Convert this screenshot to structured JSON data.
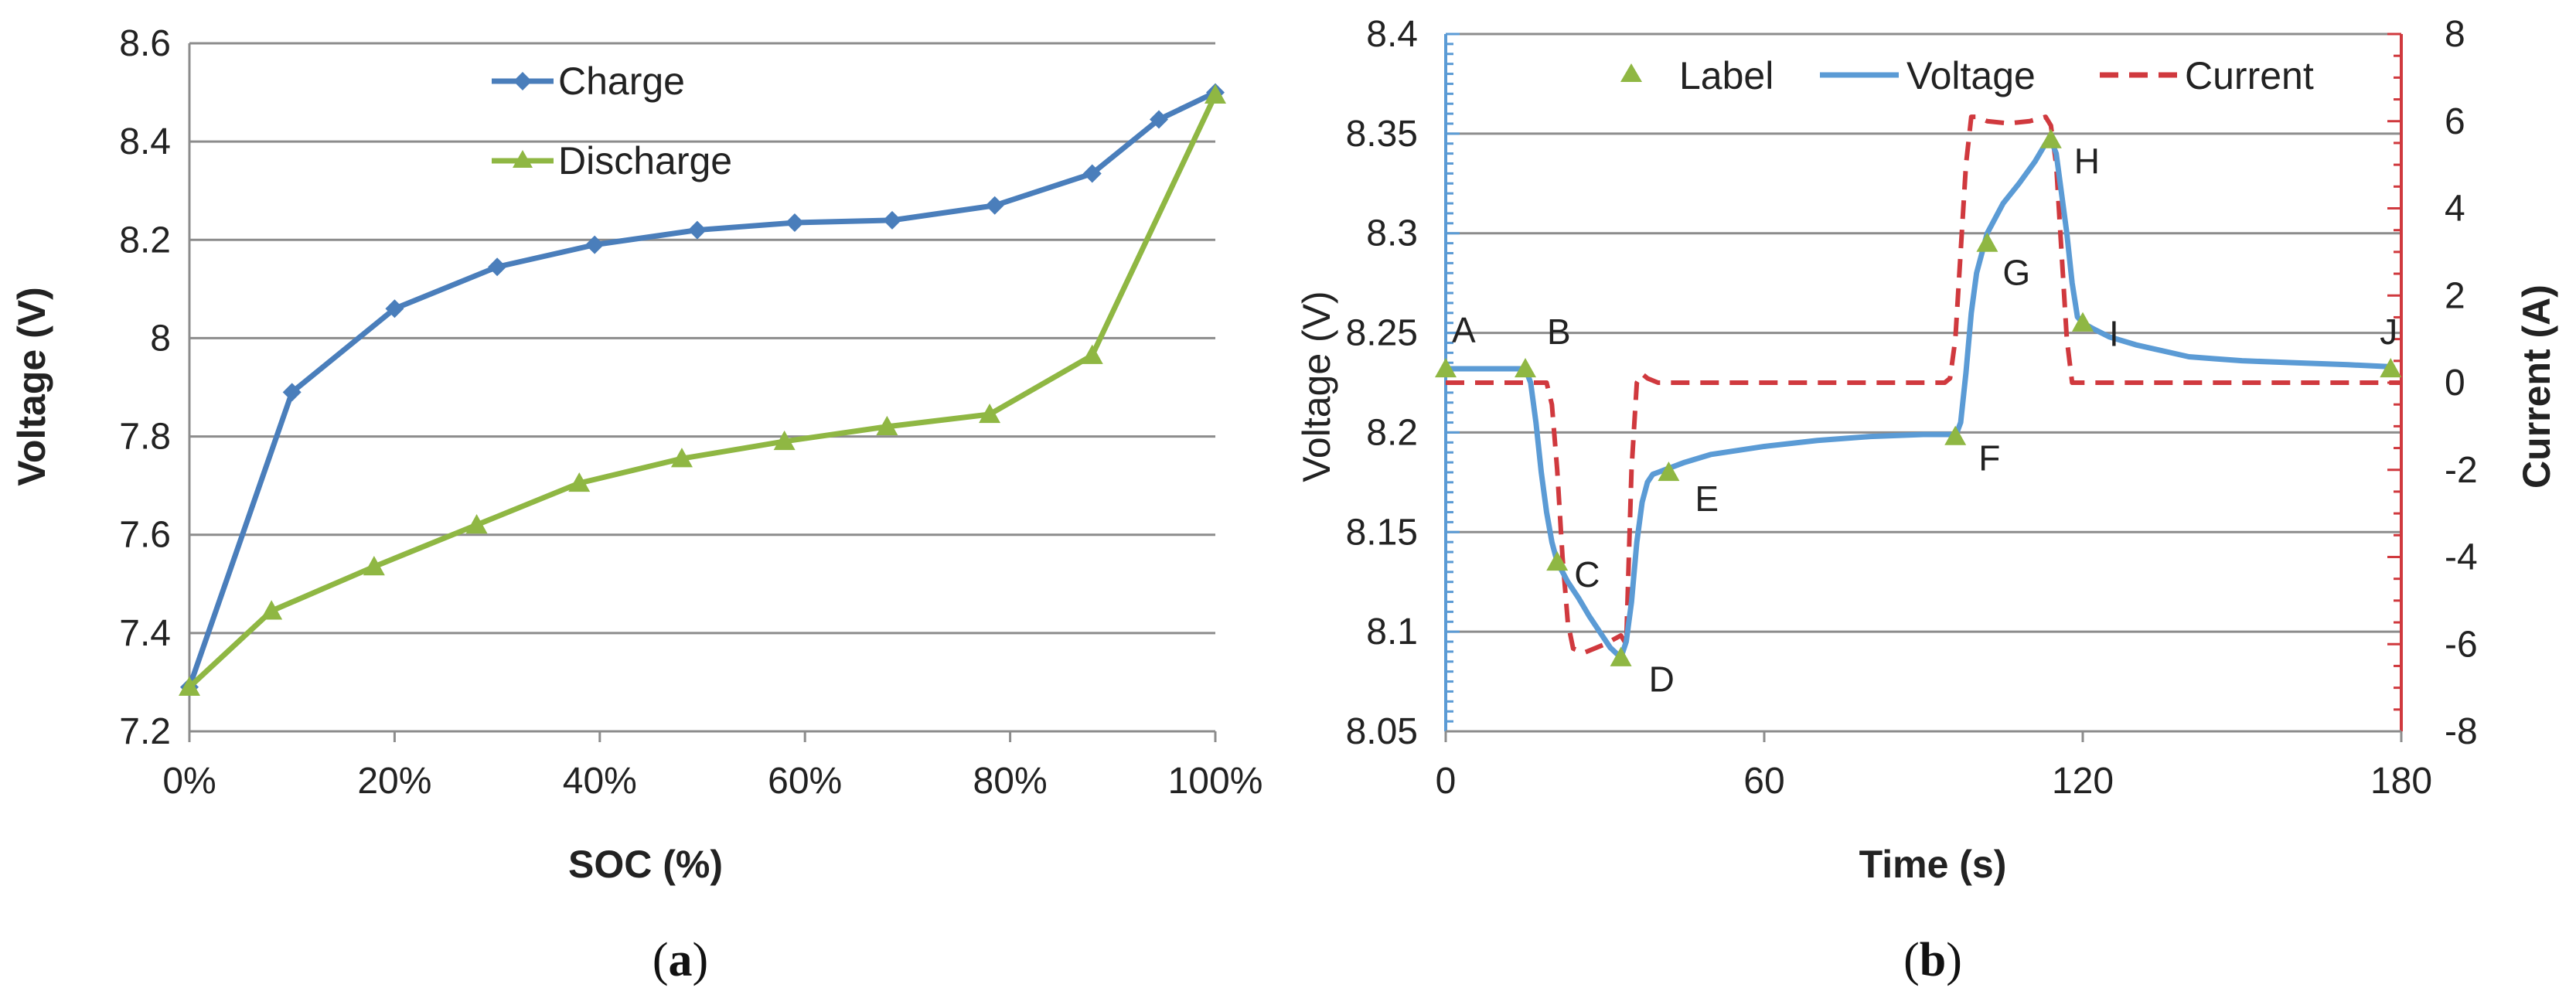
{
  "colors": {
    "charge": "#4a7ebb",
    "discharge": "#8fb743",
    "voltage": "#5b9bd5",
    "current": "#d0393e",
    "grid": "#8c8c8c",
    "label_marker": "#8fb743"
  },
  "chart_data": [
    {
      "id": "a",
      "caption_letter": "a",
      "type": "line",
      "title": "",
      "xlabel": "SOC (%)",
      "ylabel": "Voltage (V)",
      "xlim": [
        0,
        100
      ],
      "ylim": [
        7.2,
        8.6
      ],
      "grid": true,
      "legend_position": "top-center",
      "x_tick_labels": [
        "0%",
        "20%",
        "40%",
        "60%",
        "80%",
        "100%"
      ],
      "x_tick_values": [
        0,
        20,
        40,
        60,
        80,
        100
      ],
      "y_tick_labels": [
        "7.2",
        "7.4",
        "7.6",
        "7.8",
        "8",
        "8.2",
        "8.4",
        "8.6"
      ],
      "y_tick_values": [
        7.2,
        7.4,
        7.6,
        7.8,
        8.0,
        8.2,
        8.4,
        8.6
      ],
      "series": [
        {
          "name": "Charge",
          "marker": "diamond",
          "color": "#4a7ebb",
          "x": [
            0,
            10,
            20,
            30,
            39.5,
            49.5,
            59,
            68.5,
            78.5,
            88,
            94.5,
            100
          ],
          "y": [
            7.29,
            7.89,
            8.06,
            8.145,
            8.19,
            8.22,
            8.235,
            8.24,
            8.27,
            8.335,
            8.445,
            8.5
          ]
        },
        {
          "name": "Discharge",
          "marker": "triangle",
          "color": "#8fb743",
          "x": [
            0,
            8,
            18,
            28,
            38,
            48,
            58,
            68,
            78,
            88,
            100
          ],
          "y": [
            7.29,
            7.445,
            7.535,
            7.62,
            7.705,
            7.755,
            7.79,
            7.82,
            7.845,
            7.965,
            8.495
          ]
        }
      ]
    },
    {
      "id": "b",
      "caption_letter": "b",
      "type": "line",
      "title": "",
      "xlabel": "Time (s)",
      "ylabel": "Voltage (V)",
      "y2label": "Current (A)",
      "xlim": [
        0,
        180
      ],
      "ylim": [
        8.05,
        8.4
      ],
      "y2lim": [
        -8,
        8
      ],
      "grid": true,
      "legend_position": "top",
      "x_tick_labels": [
        "0",
        "60",
        "120",
        "180"
      ],
      "x_tick_values": [
        0,
        60,
        120,
        180
      ],
      "y_tick_labels": [
        "8.05",
        "8.1",
        "8.15",
        "8.2",
        "8.25",
        "8.3",
        "8.35",
        "8.4"
      ],
      "y_tick_values": [
        8.05,
        8.1,
        8.15,
        8.2,
        8.25,
        8.3,
        8.35,
        8.4
      ],
      "y2_tick_labels": [
        "-8",
        "-6",
        "-4",
        "-2",
        "0",
        "2",
        "4",
        "6",
        "8"
      ],
      "y2_tick_values": [
        -8,
        -6,
        -4,
        -2,
        0,
        2,
        4,
        6,
        8
      ],
      "series": [
        {
          "name": "Label",
          "marker": "triangle",
          "color": "#8fb743",
          "line": "none",
          "points": [
            {
              "label": "A",
              "x": 0,
              "y": 8.232
            },
            {
              "label": "B",
              "x": 15,
              "y": 8.232
            },
            {
              "label": "C",
              "x": 21,
              "y": 8.135
            },
            {
              "label": "D",
              "x": 33,
              "y": 8.087
            },
            {
              "label": "E",
              "x": 42,
              "y": 8.18
            },
            {
              "label": "F",
              "x": 96,
              "y": 8.198
            },
            {
              "label": "G",
              "x": 102,
              "y": 8.295
            },
            {
              "label": "H",
              "x": 114,
              "y": 8.347
            },
            {
              "label": "I",
              "x": 120,
              "y": 8.255
            },
            {
              "label": "J",
              "x": 178,
              "y": 8.232
            }
          ]
        },
        {
          "name": "Voltage",
          "color": "#5b9bd5",
          "line": "solid",
          "x": [
            0,
            15,
            16,
            17,
            18,
            19,
            20,
            21,
            23,
            25,
            27,
            29,
            31,
            33,
            34,
            35,
            36,
            37,
            38,
            39,
            40,
            42,
            45,
            50,
            60,
            70,
            80,
            90,
            95,
            96,
            97,
            98,
            99,
            100,
            102,
            105,
            108,
            111,
            113,
            114,
            115,
            116,
            117,
            118,
            119,
            120,
            122,
            125,
            130,
            135,
            140,
            145,
            150,
            160,
            170,
            178
          ],
          "y": [
            8.232,
            8.232,
            8.225,
            8.205,
            8.18,
            8.16,
            8.145,
            8.135,
            8.125,
            8.117,
            8.108,
            8.1,
            8.092,
            8.087,
            8.095,
            8.115,
            8.145,
            8.165,
            8.175,
            8.179,
            8.18,
            8.182,
            8.185,
            8.189,
            8.193,
            8.196,
            8.198,
            8.199,
            8.199,
            8.198,
            8.205,
            8.23,
            8.26,
            8.28,
            8.3,
            8.315,
            8.325,
            8.336,
            8.345,
            8.347,
            8.34,
            8.32,
            8.3,
            8.275,
            8.258,
            8.255,
            8.252,
            8.248,
            8.244,
            8.241,
            8.238,
            8.237,
            8.236,
            8.235,
            8.234,
            8.233
          ]
        },
        {
          "name": "Current",
          "color": "#d0393e",
          "line": "dashed",
          "axis": "right",
          "x": [
            0,
            19,
            20,
            21,
            22,
            23,
            24,
            26,
            30,
            33,
            34,
            35,
            36,
            37,
            38,
            40,
            60,
            80,
            94,
            95,
            96,
            97,
            98,
            99,
            100,
            102,
            106,
            110,
            113,
            114,
            115,
            116,
            117,
            118,
            119,
            120,
            125,
            150,
            180
          ],
          "y": [
            0,
            0,
            -0.5,
            -2,
            -4,
            -5.5,
            -6.1,
            -6.2,
            -6.0,
            -5.8,
            -6.0,
            -2,
            0,
            0.2,
            0.1,
            0,
            0,
            0,
            0,
            0.1,
            1,
            3,
            5,
            6.1,
            6.1,
            6.0,
            5.95,
            6.0,
            6.1,
            5.9,
            5,
            3,
            1,
            0,
            0,
            0,
            0,
            0,
            0
          ]
        }
      ]
    }
  ]
}
